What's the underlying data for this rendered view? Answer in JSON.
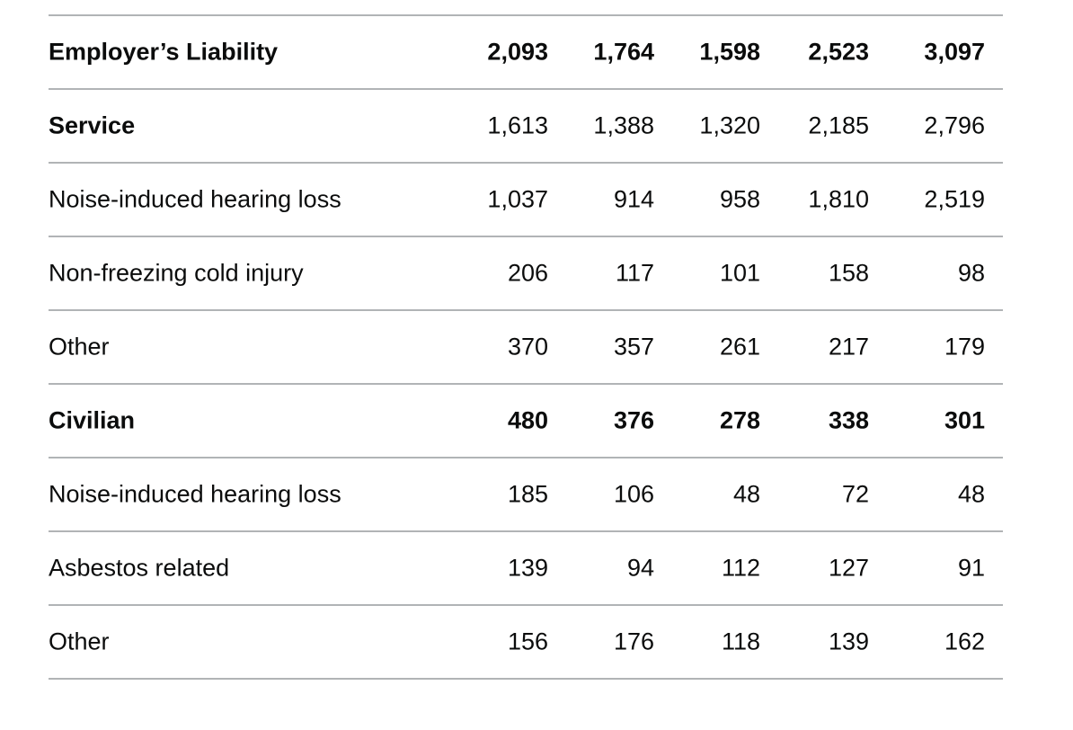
{
  "rows": [
    {
      "label": "Employer’s Liability",
      "style": "bold",
      "values": [
        "2,093",
        "1,764",
        "1,598",
        "2,523",
        "3,097"
      ]
    },
    {
      "label": "Service",
      "style": "semi",
      "values": [
        "1,613",
        "1,388",
        "1,320",
        "2,185",
        "2,796"
      ]
    },
    {
      "label": "Noise-induced hearing loss",
      "style": "normal",
      "values": [
        "1,037",
        "914",
        "958",
        "1,810",
        "2,519"
      ]
    },
    {
      "label": "Non-freezing cold injury",
      "style": "normal",
      "values": [
        "206",
        "117",
        "101",
        "158",
        "98"
      ]
    },
    {
      "label": "Other",
      "style": "normal",
      "values": [
        "370",
        "357",
        "261",
        "217",
        "179"
      ]
    },
    {
      "label": "Civilian",
      "style": "bold",
      "values": [
        "480",
        "376",
        "278",
        "338",
        "301"
      ]
    },
    {
      "label": "Noise-induced hearing loss",
      "style": "normal",
      "values": [
        "185",
        "106",
        "48",
        "72",
        "48"
      ]
    },
    {
      "label": "Asbestos related",
      "style": "normal",
      "values": [
        "139",
        "94",
        "112",
        "127",
        "91"
      ]
    },
    {
      "label": "Other",
      "style": "normal",
      "values": [
        "156",
        "176",
        "118",
        "139",
        "162"
      ]
    }
  ]
}
